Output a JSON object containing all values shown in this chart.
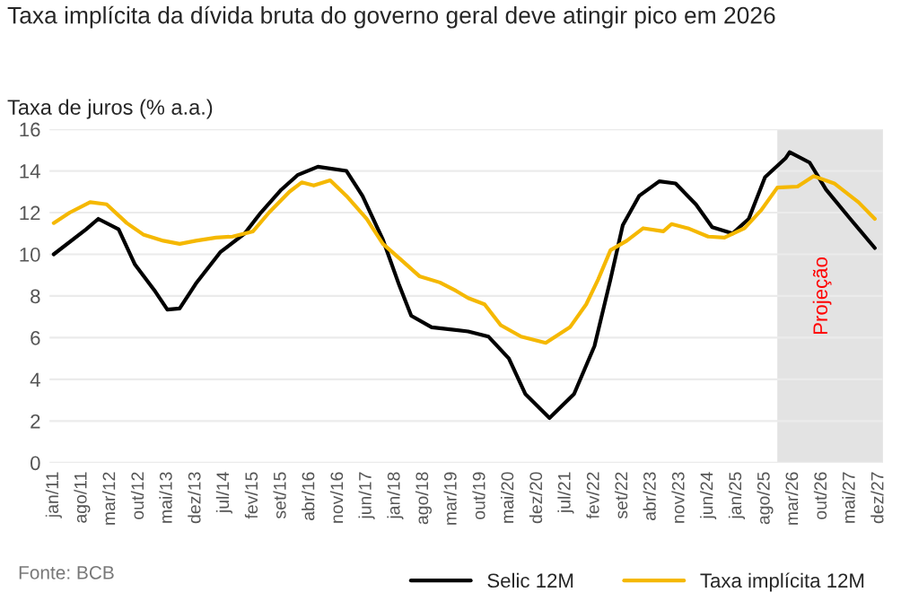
{
  "chart_data": {
    "type": "line",
    "title": "Taxa implícita da dívida bruta do governo geral deve atingir pico em 2026",
    "ylabel": "Taxa de juros (% a.a.)",
    "annotations": [
      "Fonte: BCB"
    ],
    "series": [
      {
        "name": "Selic 12M",
        "color": "#000000",
        "x": [
          "2011-01",
          "2011-09",
          "2011-12",
          "2012-05",
          "2012-09",
          "2013-02",
          "2013-05",
          "2013-08",
          "2013-12",
          "2014-06",
          "2014-12",
          "2015-04",
          "2015-09",
          "2016-01",
          "2016-06",
          "2017-01",
          "2017-05",
          "2017-10",
          "2018-02",
          "2018-05",
          "2018-10",
          "2019-07",
          "2019-12",
          "2020-05",
          "2020-09",
          "2021-03",
          "2021-09",
          "2022-02",
          "2022-06",
          "2022-09",
          "2023-01",
          "2023-06",
          "2023-10",
          "2024-03",
          "2024-07",
          "2024-12",
          "2025-04",
          "2025-08",
          "2026-01",
          "2026-02",
          "2026-07",
          "2026-11",
          "2027-05",
          "2027-11"
        ],
        "values": [
          10.0,
          11.2,
          11.7,
          11.2,
          9.5,
          8.2,
          7.35,
          7.4,
          8.6,
          10.1,
          11.0,
          12.0,
          13.1,
          13.8,
          14.2,
          14.0,
          12.8,
          10.7,
          8.5,
          7.05,
          6.5,
          6.3,
          6.05,
          5.0,
          3.3,
          2.15,
          3.3,
          5.6,
          8.8,
          11.4,
          12.8,
          13.5,
          13.4,
          12.4,
          11.3,
          11.0,
          11.7,
          13.7,
          14.6,
          14.9,
          14.4,
          13.1,
          11.7,
          10.3
        ]
      },
      {
        "name": "Taxa implícita 12M",
        "color": "#f5b800",
        "x": [
          "2011-01",
          "2011-05",
          "2011-10",
          "2012-02",
          "2012-07",
          "2012-11",
          "2013-04",
          "2013-08",
          "2013-12",
          "2014-05",
          "2014-09",
          "2015-02",
          "2015-06",
          "2015-11",
          "2016-02",
          "2016-05",
          "2016-09",
          "2017-01",
          "2017-06",
          "2017-10",
          "2018-03",
          "2018-07",
          "2018-12",
          "2019-04",
          "2019-07",
          "2019-11",
          "2020-03",
          "2020-08",
          "2021-02",
          "2021-08",
          "2021-12",
          "2022-03",
          "2022-06",
          "2022-10",
          "2023-02",
          "2023-07",
          "2023-09",
          "2024-01",
          "2024-06",
          "2024-10",
          "2025-03",
          "2025-07",
          "2025-11",
          "2026-04",
          "2026-08",
          "2027-01",
          "2027-07",
          "2027-11"
        ],
        "values": [
          11.5,
          12.0,
          12.5,
          12.4,
          11.5,
          10.95,
          10.65,
          10.5,
          10.65,
          10.8,
          10.85,
          11.1,
          12.0,
          13.0,
          13.45,
          13.3,
          13.55,
          12.8,
          11.7,
          10.5,
          9.65,
          8.95,
          8.65,
          8.25,
          7.9,
          7.6,
          6.6,
          6.05,
          5.75,
          6.5,
          7.6,
          8.8,
          10.2,
          10.65,
          11.25,
          11.1,
          11.45,
          11.25,
          10.85,
          10.8,
          11.25,
          12.1,
          13.2,
          13.25,
          13.75,
          13.4,
          12.5,
          11.7
        ]
      }
    ],
    "xlim": [
      "2010-12",
      "2028-01"
    ],
    "xticks": [
      {
        "value": "2011-01",
        "label": "jan/11"
      },
      {
        "value": "2011-08",
        "label": "ago/11"
      },
      {
        "value": "2012-03",
        "label": "mar/12"
      },
      {
        "value": "2012-10",
        "label": "out/12"
      },
      {
        "value": "2013-05",
        "label": "mai/13"
      },
      {
        "value": "2013-12",
        "label": "dez/13"
      },
      {
        "value": "2014-07",
        "label": "jul/14"
      },
      {
        "value": "2015-02",
        "label": "fev/15"
      },
      {
        "value": "2015-09",
        "label": "set/15"
      },
      {
        "value": "2016-04",
        "label": "abr/16"
      },
      {
        "value": "2016-11",
        "label": "nov/16"
      },
      {
        "value": "2017-06",
        "label": "jun/17"
      },
      {
        "value": "2018-01",
        "label": "jan/18"
      },
      {
        "value": "2018-08",
        "label": "ago/18"
      },
      {
        "value": "2019-03",
        "label": "mar/19"
      },
      {
        "value": "2019-10",
        "label": "out/19"
      },
      {
        "value": "2020-05",
        "label": "mai/20"
      },
      {
        "value": "2020-12",
        "label": "dez/20"
      },
      {
        "value": "2021-07",
        "label": "jul/21"
      },
      {
        "value": "2022-02",
        "label": "fev/22"
      },
      {
        "value": "2022-09",
        "label": "set/22"
      },
      {
        "value": "2023-04",
        "label": "abr/23"
      },
      {
        "value": "2023-11",
        "label": "nov/23"
      },
      {
        "value": "2024-06",
        "label": "jun/24"
      },
      {
        "value": "2025-01",
        "label": "jan/25"
      },
      {
        "value": "2025-08",
        "label": "ago/25"
      },
      {
        "value": "2026-03",
        "label": "mar/26"
      },
      {
        "value": "2026-10",
        "label": "out/26"
      },
      {
        "value": "2027-05",
        "label": "mai/27"
      },
      {
        "value": "2027-12",
        "label": "dez/27"
      }
    ],
    "ylim": [
      0,
      16
    ],
    "yticks": [
      0,
      2,
      4,
      6,
      8,
      10,
      12,
      14,
      16
    ],
    "grid": "y",
    "legend": "bottom",
    "line_style": "solid",
    "bands": [
      {
        "axis": "x",
        "from": "2025-11",
        "to": "2028-01",
        "label": "Projeção",
        "color": "#e3e3e3"
      }
    ]
  }
}
